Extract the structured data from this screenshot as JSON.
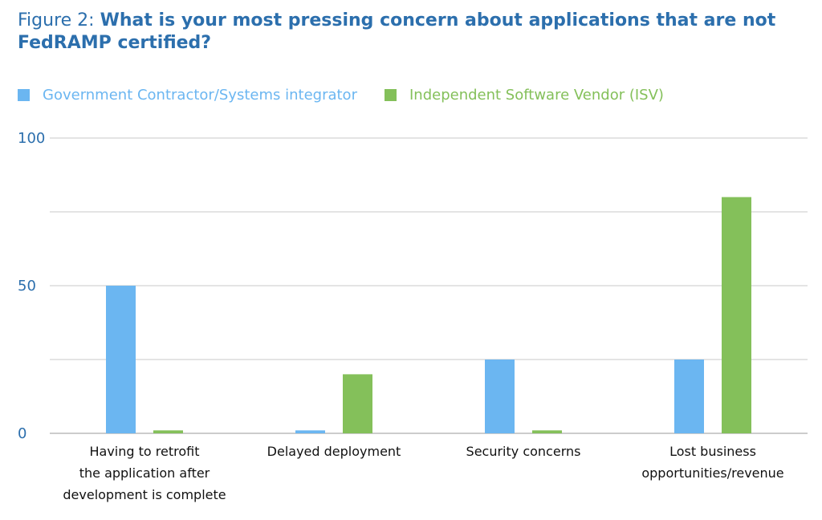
{
  "chart_data": {
    "type": "bar",
    "title_prefix": "Figure 2: ",
    "title": "What is your most pressing concern about applications that are not FedRAMP certified?",
    "categories": [
      [
        "Having to retrofit",
        "the application after",
        "development is complete"
      ],
      [
        "Delayed deployment"
      ],
      [
        "Security concerns"
      ],
      [
        "Lost business",
        "opportunities/revenue"
      ]
    ],
    "series": [
      {
        "name": "Government Contractor/Systems integrator",
        "color": "#6bb6f1",
        "values": [
          50,
          1,
          25,
          25
        ]
      },
      {
        "name": "Independent Software Vendor (ISV)",
        "color": "#84c05a",
        "values": [
          1,
          20,
          1,
          80
        ]
      }
    ],
    "ylim": [
      0,
      100
    ],
    "gridlines": [
      0,
      25,
      50,
      75,
      100
    ],
    "ytick_labels": [
      {
        "value": 0,
        "label": "0"
      },
      {
        "value": 50,
        "label": "50"
      },
      {
        "value": 100,
        "label": "100"
      }
    ],
    "grid": true,
    "legend_position": "top-left",
    "tick_color": "#2c6fad"
  }
}
